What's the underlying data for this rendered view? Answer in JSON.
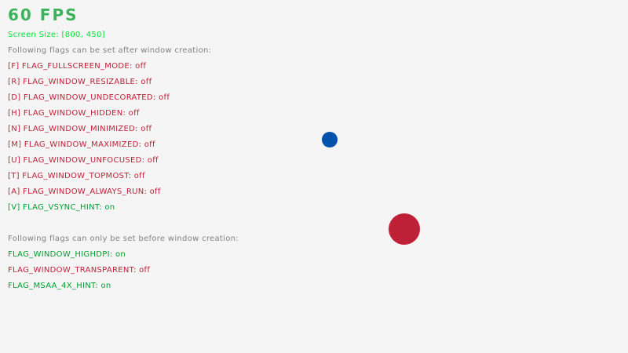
{
  "fps": "60 FPS",
  "screen_size": "Screen Size: [800, 450]",
  "after_heading": "Following flags can be set after window creation:",
  "after_flags": [
    {
      "label": "[F] FLAG_FULLSCREEN_MODE: off",
      "state": "off"
    },
    {
      "label": "[R] FLAG_WINDOW_RESIZABLE: off",
      "state": "off"
    },
    {
      "label": "[D] FLAG_WINDOW_UNDECORATED: off",
      "state": "off"
    },
    {
      "label": "[H] FLAG_WINDOW_HIDDEN: off",
      "state": "off"
    },
    {
      "label": "[N] FLAG_WINDOW_MINIMIZED: off",
      "state": "off"
    },
    {
      "label": "[M] FLAG_WINDOW_MAXIMIZED: off",
      "state": "off"
    },
    {
      "label": "[U] FLAG_WINDOW_UNFOCUSED: off",
      "state": "off"
    },
    {
      "label": "[T] FLAG_WINDOW_TOPMOST: off",
      "state": "off"
    },
    {
      "label": "[A] FLAG_WINDOW_ALWAYS_RUN: off",
      "state": "off"
    },
    {
      "label": "[V] FLAG_VSYNC_HINT: on",
      "state": "on"
    }
  ],
  "before_heading": "Following flags can only be set before window creation:",
  "before_flags": [
    {
      "label": "FLAG_WINDOW_HIGHDPI: on",
      "state": "on"
    },
    {
      "label": "FLAG_WINDOW_TRANSPARENT: off",
      "state": "off"
    },
    {
      "label": "FLAG_MSAA_4X_HINT: on",
      "state": "on"
    }
  ],
  "colors": {
    "background": "#f5f5f5",
    "fps": "#3cb35a",
    "screen_size": "#00e430",
    "heading": "#828282",
    "on": "#009e2f",
    "off": "#be2137",
    "ball_blue": "#0052ac",
    "ball_red": "#be2137"
  }
}
